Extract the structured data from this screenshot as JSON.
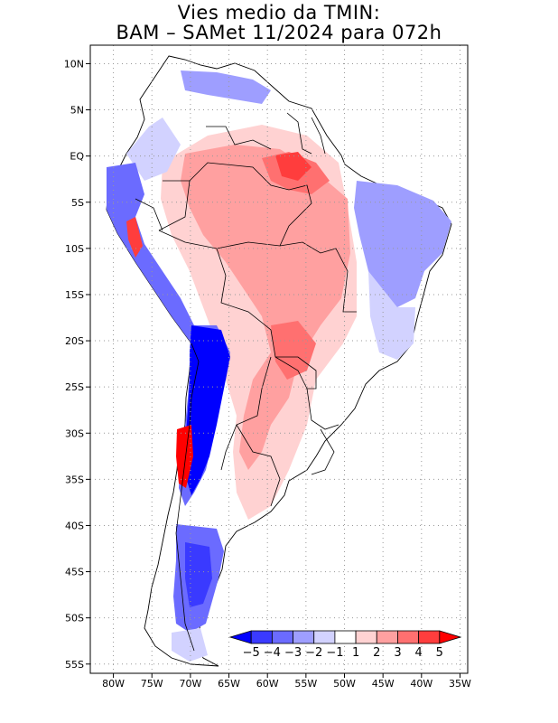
{
  "title": {
    "line1": "Vies medio da TMIN:",
    "line2": "BAM – SAMet 11/2024  para 072h"
  },
  "map": {
    "region": "South America",
    "lon_range": [
      -83,
      -34
    ],
    "lat_range": [
      -56,
      12
    ],
    "lon_ticks": [
      {
        "value": -80,
        "label": "80W"
      },
      {
        "value": -75,
        "label": "75W"
      },
      {
        "value": -70,
        "label": "70W"
      },
      {
        "value": -65,
        "label": "65W"
      },
      {
        "value": -60,
        "label": "60W"
      },
      {
        "value": -55,
        "label": "55W"
      },
      {
        "value": -50,
        "label": "50W"
      },
      {
        "value": -45,
        "label": "45W"
      },
      {
        "value": -40,
        "label": "40W"
      },
      {
        "value": -35,
        "label": "35W"
      }
    ],
    "lat_ticks": [
      {
        "value": 10,
        "label": "10N"
      },
      {
        "value": 5,
        "label": "5N"
      },
      {
        "value": 0,
        "label": "EQ"
      },
      {
        "value": -5,
        "label": "5S"
      },
      {
        "value": -10,
        "label": "10S"
      },
      {
        "value": -15,
        "label": "15S"
      },
      {
        "value": -20,
        "label": "20S"
      },
      {
        "value": -25,
        "label": "25S"
      },
      {
        "value": -30,
        "label": "30S"
      },
      {
        "value": -35,
        "label": "35S"
      },
      {
        "value": -40,
        "label": "40S"
      },
      {
        "value": -45,
        "label": "45S"
      },
      {
        "value": -50,
        "label": "50S"
      },
      {
        "value": -55,
        "label": "55S"
      }
    ]
  },
  "colorbar": {
    "labels": [
      "−5",
      "−4",
      "−3",
      "−2",
      "−1",
      "1",
      "2",
      "3",
      "4",
      "5"
    ],
    "colors": [
      "#0000ff",
      "#3a3aff",
      "#6b6bff",
      "#9e9eff",
      "#d2d2ff",
      "#ffffff",
      "#ffd2d2",
      "#ffa0a0",
      "#ff7070",
      "#ff3d3d",
      "#ff0000"
    ]
  },
  "colors": {
    "warm_light": "#ffd2d2",
    "warm_mid": "#ffa0a0",
    "warm_strong": "#ff7070",
    "warm_max": "#ff0000",
    "cool_light": "#d2d2ff",
    "cool_mid": "#9e9eff",
    "cool_strong": "#3a3aff",
    "cool_max": "#0000ff"
  }
}
